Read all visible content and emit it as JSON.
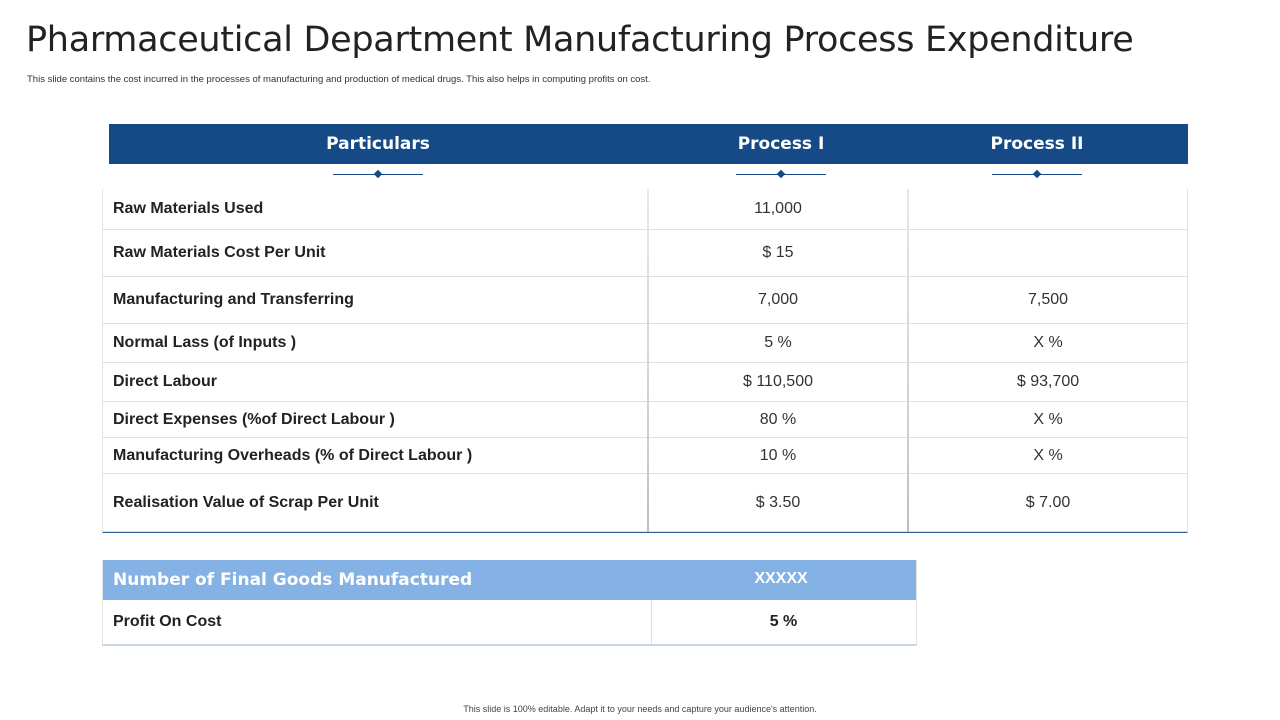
{
  "title": "Pharmaceutical Department Manufacturing Process Expenditure",
  "subtitle": "This slide contains the cost incurred in the processes of manufacturing and production of medical drugs. This also helps in computing profits on cost.",
  "table": {
    "headers": [
      "Particulars",
      "Process I",
      "Process II"
    ],
    "rows": [
      {
        "label": "Raw Materials Used",
        "p1": "11,000",
        "p2": ""
      },
      {
        "label": "Raw Materials Cost Per Unit",
        "p1": "$ 15",
        "p2": ""
      },
      {
        "label": "Manufacturing and Transferring",
        "p1": "7,000",
        "p2": "7,500"
      },
      {
        "label": "Normal Lass (of Inputs )",
        "p1": "5 %",
        "p2": "X %"
      },
      {
        "label": "Direct Labour",
        "p1": "$ 110,500",
        "p2": "$ 93,700"
      },
      {
        "label": "Direct Expenses (%of Direct Labour )",
        "p1": "80 %",
        "p2": "X %"
      },
      {
        "label": "Manufacturing Overheads (% of Direct Labour )",
        "p1": "10 %",
        "p2": "X %"
      },
      {
        "label": "Realisation Value of Scrap Per Unit",
        "p1": "$ 3.50",
        "p2": "$ 7.00"
      }
    ]
  },
  "summary": {
    "header_label": "Number of Final Goods Manufactured",
    "header_value": "XXXXX",
    "row_label": "Profit On Cost",
    "row_value": "5 %"
  },
  "footer": "This slide is 100% editable. Adapt it to your needs and capture your audience's attention.",
  "colors": {
    "header": "#154a86",
    "summary_header": "#85b2e4"
  }
}
